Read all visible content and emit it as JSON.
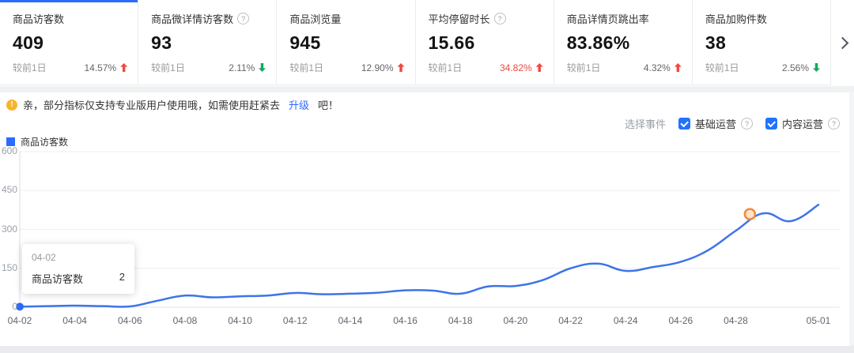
{
  "colors": {
    "accent_blue": "#2b6bff",
    "line_blue": "#3d74e8",
    "up_red": "#f0483e",
    "down_green": "#13a95e",
    "event_marker_orange": "#f28a3d",
    "notice_yellow": "#f7b52c"
  },
  "icons": {
    "help": "?",
    "notice": "!"
  },
  "metrics_cards": [
    {
      "title": "商品访客数",
      "value": "409",
      "compare_label": "较前1日",
      "change": "14.57%",
      "direction": "up",
      "selected": true,
      "has_info": false
    },
    {
      "title": "商品微详情访客数",
      "value": "93",
      "compare_label": "较前1日",
      "change": "2.11%",
      "direction": "down",
      "selected": false,
      "has_info": true
    },
    {
      "title": "商品浏览量",
      "value": "945",
      "compare_label": "较前1日",
      "change": "12.90%",
      "direction": "up",
      "selected": false,
      "has_info": false
    },
    {
      "title": "平均停留时长",
      "value": "15.66",
      "compare_label": "较前1日",
      "change": "34.82%",
      "direction": "up",
      "selected": false,
      "has_info": true,
      "change_highlight": true
    },
    {
      "title": "商品详情页跳出率",
      "value": "83.86%",
      "compare_label": "较前1日",
      "change": "4.32%",
      "direction": "up",
      "selected": false,
      "has_info": false
    },
    {
      "title": "商品加购件数",
      "value": "38",
      "compare_label": "较前1日",
      "change": "2.56%",
      "direction": "down",
      "selected": false,
      "has_info": false
    }
  ],
  "notice": {
    "text_before": "亲，部分指标仅支持专业版用户使用哦，如需使用赶紧去",
    "link": "升级",
    "text_after": "吧！"
  },
  "controls": {
    "label": "选择事件",
    "options": [
      {
        "label": "基础运营",
        "checked": true
      },
      {
        "label": "内容运营",
        "checked": true
      }
    ]
  },
  "legend": {
    "label": "商品访客数"
  },
  "tooltip": {
    "date": "04-02",
    "series": "商品访客数",
    "value": "2"
  },
  "chart_data": {
    "type": "line",
    "title": "",
    "series_name": "商品访客数",
    "x": [
      "04-02",
      "04-03",
      "04-04",
      "04-05",
      "04-06",
      "04-07",
      "04-08",
      "04-09",
      "04-10",
      "04-11",
      "04-12",
      "04-13",
      "04-14",
      "04-15",
      "04-16",
      "04-17",
      "04-18",
      "04-19",
      "04-20",
      "04-21",
      "04-22",
      "04-23",
      "04-24",
      "04-25",
      "04-26",
      "04-27",
      "04-28",
      "04-29",
      "04-30",
      "05-01"
    ],
    "values": [
      2,
      4,
      6,
      4,
      3,
      25,
      45,
      38,
      42,
      45,
      55,
      50,
      52,
      56,
      65,
      64,
      52,
      80,
      82,
      105,
      150,
      168,
      140,
      155,
      175,
      220,
      295,
      362,
      332,
      395
    ],
    "x_tick_labels": [
      "04-02",
      "04-04",
      "04-06",
      "04-08",
      "04-10",
      "04-12",
      "04-14",
      "04-16",
      "04-18",
      "04-20",
      "04-22",
      "04-24",
      "04-26",
      "04-28",
      "05-01"
    ],
    "y_ticks": [
      0,
      150,
      300,
      450,
      600
    ],
    "ylim": [
      0,
      600
    ],
    "grid": true,
    "legend_position": "top-left",
    "line_color": "#3d74e8",
    "hover_point": {
      "date": "04-02",
      "value": 2
    },
    "event_marker": {
      "date": "04-29",
      "type": "event-circle"
    }
  }
}
